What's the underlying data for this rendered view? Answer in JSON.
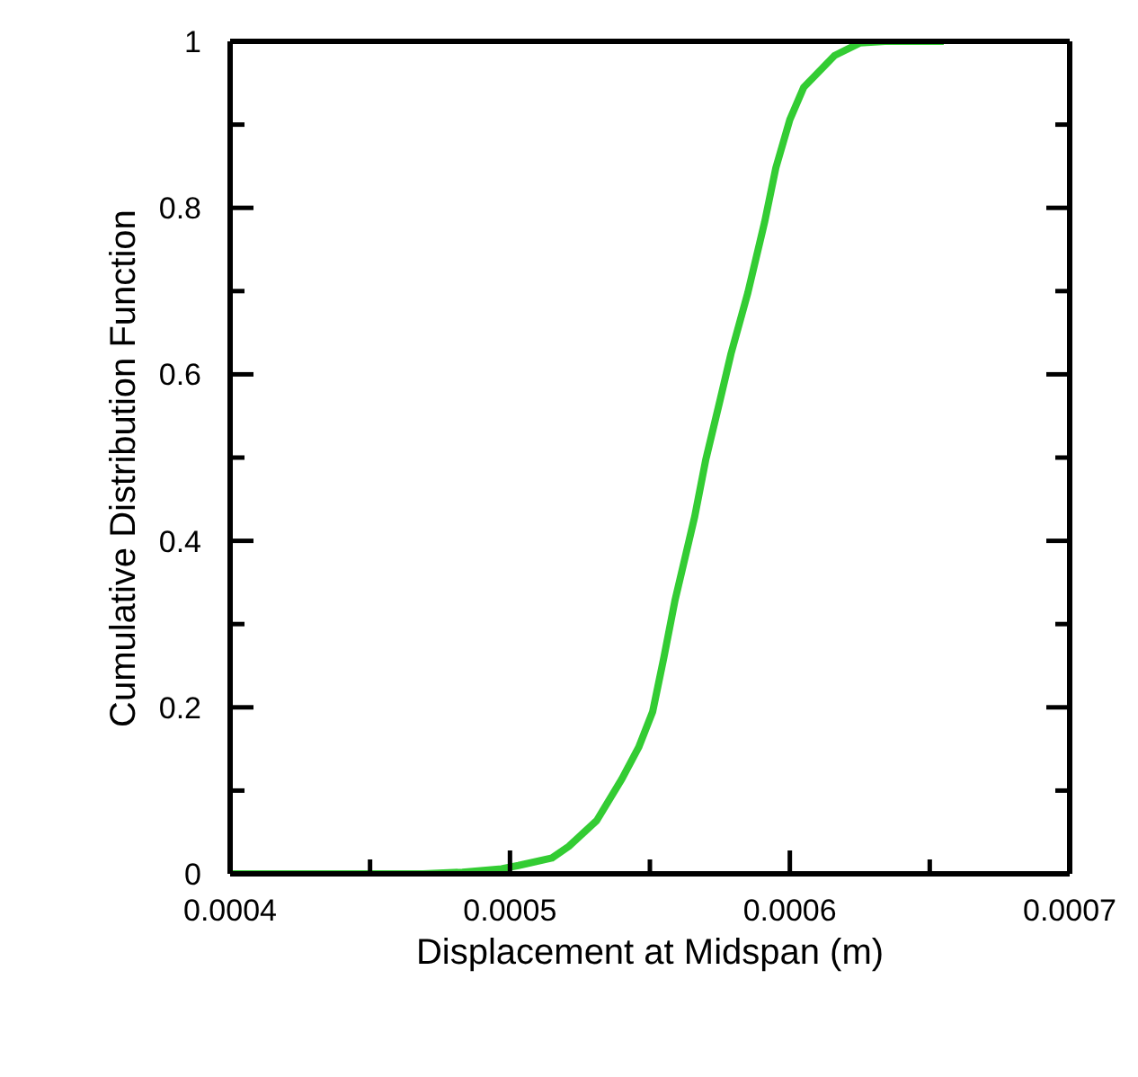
{
  "chart_data": {
    "type": "line",
    "xlabel": "Displacement at Midspan (m)",
    "ylabel": "Cumulative Distribution Function",
    "x": [
      0.0004,
      0.000469,
      0.000483,
      0.000497,
      0.000503,
      0.000515,
      0.000521,
      0.000531,
      0.00054,
      0.000546,
      0.000551,
      0.000555,
      0.000559,
      0.000566,
      0.00057,
      0.000575,
      0.000579,
      0.000585,
      0.000591,
      0.000595,
      0.0006,
      0.000605,
      0.000616,
      0.000625,
      0.000634,
      0.000655
    ],
    "series": [
      {
        "color": "#33cc33",
        "values": [
          0,
          0,
          0.002,
          0.006,
          0.01,
          0.019,
          0.033,
          0.064,
          0.114,
          0.152,
          0.195,
          0.26,
          0.329,
          0.429,
          0.498,
          0.568,
          0.625,
          0.698,
          0.783,
          0.848,
          0.906,
          0.945,
          0.983,
          0.998,
          1,
          1
        ]
      }
    ],
    "xlim": [
      0.0004,
      0.0007
    ],
    "xticks": [
      0.0004,
      {
        "value": 0.00045,
        "label": null
      },
      0.0005,
      {
        "value": 0.00055,
        "label": null
      },
      0.0006,
      {
        "value": 0.00065,
        "label": null
      },
      0.0007
    ],
    "ylim": [
      0,
      1
    ],
    "yticks": [
      0,
      {
        "value": 0.1,
        "label": null
      },
      0.2,
      {
        "value": 0.3,
        "label": null
      },
      0.4,
      {
        "value": 0.5,
        "label": null
      },
      0.6,
      {
        "value": 0.7,
        "label": null
      },
      0.8,
      {
        "value": 0.9,
        "label": null
      },
      1
    ],
    "marker": "none",
    "line_style": "solid"
  }
}
